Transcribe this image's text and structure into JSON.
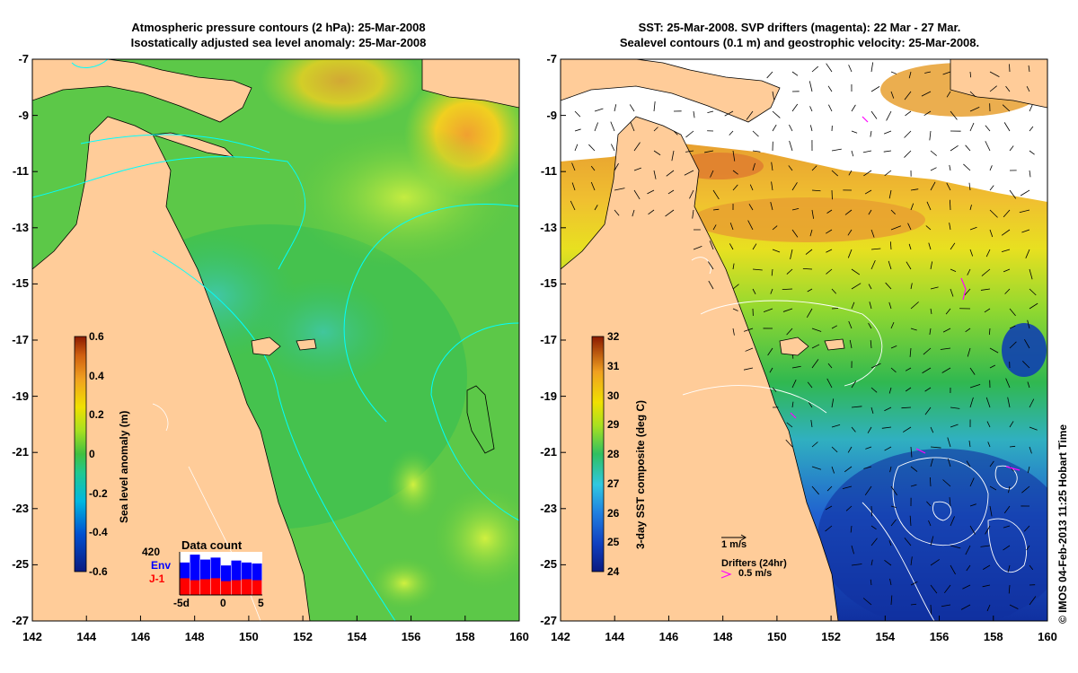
{
  "left_panel": {
    "title_line1": "Atmospheric pressure contours (2 hPa): 25-Mar-2008",
    "title_line2": "Isostatically adjusted sea level anomaly: 25-Mar-2008",
    "colorbar_label": "Sea level anomaly (m)",
    "colorbar_ticks": [
      "0.6",
      "0.4",
      "0.2",
      "0",
      "-0.2",
      "-0.4",
      "-0.6"
    ],
    "data_count": {
      "title": "Data count",
      "max_label": "420",
      "env_label": "Env",
      "j1_label": "J-1",
      "x_ticks": [
        "-5d",
        "0",
        "5"
      ],
      "env_counts": [
        330,
        410,
        360,
        380,
        300,
        350,
        330,
        320
      ],
      "j1_counts": [
        170,
        150,
        160,
        170,
        140,
        150,
        160,
        150
      ],
      "colors": {
        "env": "#0000ff",
        "j1": "#ff0000"
      }
    }
  },
  "right_panel": {
    "title_line1": "SST: 25-Mar-2008. SVP drifters (magenta): 22 Mar - 27 Mar.",
    "title_line2": "Sealevel contours (0.1 m) and geostrophic velocity: 25-Mar-2008.",
    "colorbar_label": "3-day SST composite (deg C)",
    "colorbar_ticks": [
      "32",
      "31",
      "30",
      "29",
      "28",
      "27",
      "26",
      "25",
      "24"
    ],
    "velocity_legend": "1 m/s",
    "drifter_legend_title": "Drifters (24hr)",
    "drifter_legend_speed": "0.5 m/s",
    "colors": {
      "drifter": "#ff00ff"
    }
  },
  "axes": {
    "lat_labels": [
      "-7",
      "-9",
      "-11",
      "-13",
      "-15",
      "-17",
      "-19",
      "-21",
      "-23",
      "-25",
      "-27"
    ],
    "lon_labels": [
      "142",
      "144",
      "146",
      "148",
      "150",
      "152",
      "154",
      "156",
      "158",
      "160"
    ],
    "lat_range": [
      -27,
      -7
    ],
    "lon_range": [
      142,
      160
    ]
  },
  "credit": "© IMOS 04-Feb-2013 11:25 Hobart Time",
  "colors": {
    "land": "#ffcc99",
    "pressure_contour": "#00ffff",
    "coast": "#000000"
  }
}
